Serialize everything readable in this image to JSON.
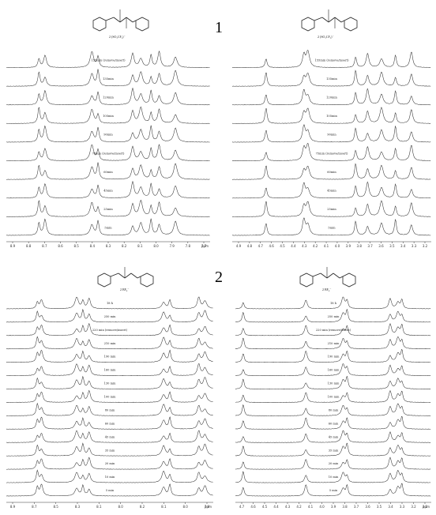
{
  "figure": {
    "section_labels": [
      "1",
      "2"
    ],
    "panels": [
      {
        "id": "1a",
        "structure_label": "2 (SO₂CF₃)⁻",
        "trace_labels": [
          "155min (remove/insert)",
          "135min",
          "120min",
          "105min",
          "90min",
          "75min (remove/insert)",
          "60min",
          "45min",
          "25min",
          "5min"
        ],
        "x_ticks": [
          "8.9",
          "8.8",
          "8.7",
          "8.6",
          "8.5",
          "8.4",
          "8.3",
          "8.2",
          "8.1",
          "8.0",
          "7.9",
          "7.8",
          "7.7"
        ],
        "x_unit": "ppm",
        "peak_positions": [
          0.16,
          0.19,
          0.42,
          0.45,
          0.62,
          0.66,
          0.71,
          0.75,
          0.83
        ]
      },
      {
        "id": "1b",
        "structure_label": "2 (SO₂CF₃)⁻",
        "trace_labels": [
          "155min (remove/insert)",
          "135min",
          "120min",
          "105min",
          "90min",
          "75min (remove/insert)",
          "60min",
          "45min",
          "25min",
          "5min"
        ],
        "x_ticks": [
          "4.9",
          "4.8",
          "4.7",
          "4.6",
          "4.5",
          "4.4",
          "4.3",
          "4.2",
          "4.1",
          "4.0",
          "3.9",
          "3.8",
          "3.7",
          "3.6",
          "3.5",
          "3.4",
          "3.3",
          "3.2"
        ],
        "x_unit": "",
        "peak_positions": [
          0.17,
          0.36,
          0.38,
          0.62,
          0.68,
          0.75,
          0.82,
          0.9
        ]
      },
      {
        "id": "2a",
        "structure_label": "2 BF₄⁻",
        "trace_labels": [
          "18 h",
          "250 min",
          "220 min (remove/insert)",
          "210 min",
          "190 min",
          "160 min",
          "130 min",
          "100 min",
          "80 min",
          "60 min",
          "45 min",
          "35 min",
          "20 min",
          "10 min",
          "5 min"
        ],
        "x_ticks": [
          "8.9",
          "8.7",
          "8.5",
          "8.3",
          "8.1",
          "8.0",
          "8.2",
          "8.1",
          "8.0",
          "7.9"
        ],
        "x_unit": "ppm",
        "peak_positions": [
          0.15,
          0.17,
          0.34,
          0.37,
          0.4,
          0.76,
          0.79,
          0.93,
          0.96
        ]
      },
      {
        "id": "2b",
        "structure_label": "2 BF₄⁻",
        "trace_labels": [
          "18 h",
          "250 min",
          "220 min (remove/insert)",
          "210 min",
          "190 min",
          "160 min",
          "130 min",
          "100 min",
          "80 min",
          "60 min",
          "45 min",
          "35 min",
          "20 min",
          "10 min",
          "5 min"
        ],
        "x_ticks": [
          "4.7",
          "4.6",
          "4.5",
          "4.4",
          "4.3",
          "4.2",
          "4.1",
          "4.0",
          "3.9",
          "3.8",
          "3.7",
          "3.6",
          "3.5",
          "3.4",
          "3.3",
          "3.2",
          "3.1"
        ],
        "x_unit": "ppm",
        "peak_positions": [
          0.04,
          0.36,
          0.55,
          0.57,
          0.79,
          0.83,
          0.85
        ]
      }
    ]
  }
}
